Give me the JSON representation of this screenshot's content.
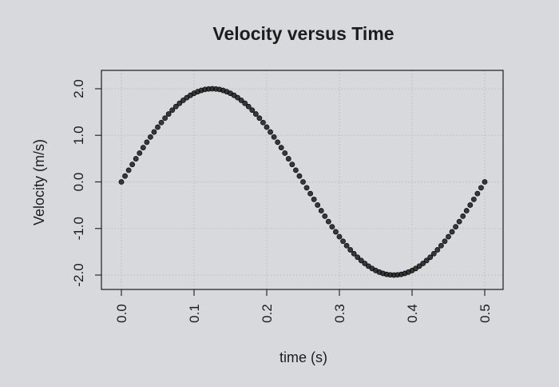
{
  "chart_data": {
    "type": "scatter",
    "title": "Velocity versus Time",
    "xlabel": "time (s)",
    "ylabel": "Velocity (m/s)",
    "xlim": [
      0.0,
      0.5
    ],
    "ylim": [
      -2.0,
      2.0
    ],
    "grid": true,
    "x_ticks": [
      "0.0",
      "0.1",
      "0.2",
      "0.3",
      "0.4",
      "0.5"
    ],
    "y_ticks": [
      "-2.0",
      "-1.0",
      "0.0",
      "1.0",
      "2.0"
    ],
    "series": [
      {
        "function": "v(t) = 2 sin(2π·2t)",
        "x": [
          0.0,
          0.005,
          0.01,
          0.015,
          0.02,
          0.025,
          0.03,
          0.035,
          0.04,
          0.045,
          0.05,
          0.055,
          0.06,
          0.065,
          0.07,
          0.075,
          0.08,
          0.085,
          0.09,
          0.095,
          0.1,
          0.105,
          0.11,
          0.115,
          0.12,
          0.125,
          0.13,
          0.135,
          0.14,
          0.145,
          0.15,
          0.155,
          0.16,
          0.165,
          0.17,
          0.175,
          0.18,
          0.185,
          0.19,
          0.195,
          0.2,
          0.205,
          0.21,
          0.215,
          0.22,
          0.225,
          0.23,
          0.235,
          0.24,
          0.245,
          0.25,
          0.255,
          0.26,
          0.265,
          0.27,
          0.275,
          0.28,
          0.285,
          0.29,
          0.295,
          0.3,
          0.305,
          0.31,
          0.315,
          0.32,
          0.325,
          0.33,
          0.335,
          0.34,
          0.345,
          0.35,
          0.355,
          0.36,
          0.365,
          0.37,
          0.375,
          0.38,
          0.385,
          0.39,
          0.395,
          0.4,
          0.405,
          0.41,
          0.415,
          0.42,
          0.425,
          0.43,
          0.435,
          0.44,
          0.445,
          0.45,
          0.455,
          0.46,
          0.465,
          0.47,
          0.475,
          0.48,
          0.485,
          0.49,
          0.495,
          0.5
        ],
        "y": [
          0.0,
          0.126,
          0.251,
          0.375,
          0.497,
          0.618,
          0.736,
          0.852,
          0.964,
          1.072,
          1.176,
          1.275,
          1.369,
          1.458,
          1.541,
          1.618,
          1.688,
          1.751,
          1.809,
          1.859,
          1.902,
          1.937,
          1.965,
          1.985,
          1.996,
          2.0,
          1.996,
          1.985,
          1.965,
          1.937,
          1.902,
          1.859,
          1.809,
          1.751,
          1.688,
          1.618,
          1.541,
          1.458,
          1.369,
          1.275,
          1.176,
          1.072,
          0.964,
          0.852,
          0.736,
          0.618,
          0.497,
          0.375,
          0.251,
          0.126,
          0.0,
          -0.126,
          -0.251,
          -0.375,
          -0.497,
          -0.618,
          -0.736,
          -0.852,
          -0.964,
          -1.072,
          -1.176,
          -1.275,
          -1.369,
          -1.458,
          -1.541,
          -1.618,
          -1.688,
          -1.751,
          -1.809,
          -1.859,
          -1.902,
          -1.937,
          -1.965,
          -1.985,
          -1.996,
          -2.0,
          -1.996,
          -1.985,
          -1.965,
          -1.937,
          -1.902,
          -1.859,
          -1.809,
          -1.751,
          -1.688,
          -1.618,
          -1.541,
          -1.458,
          -1.369,
          -1.275,
          -1.176,
          -1.072,
          -0.964,
          -0.852,
          -0.736,
          -0.618,
          -0.497,
          -0.375,
          -0.251,
          -0.126,
          0.0
        ],
        "marker_color": "#1a1a1a"
      }
    ]
  },
  "colors": {
    "background": "#d7d9dc",
    "plot_border": "#2b2b2b",
    "grid": "#c3c4c6",
    "text": "#1d1d1d"
  }
}
